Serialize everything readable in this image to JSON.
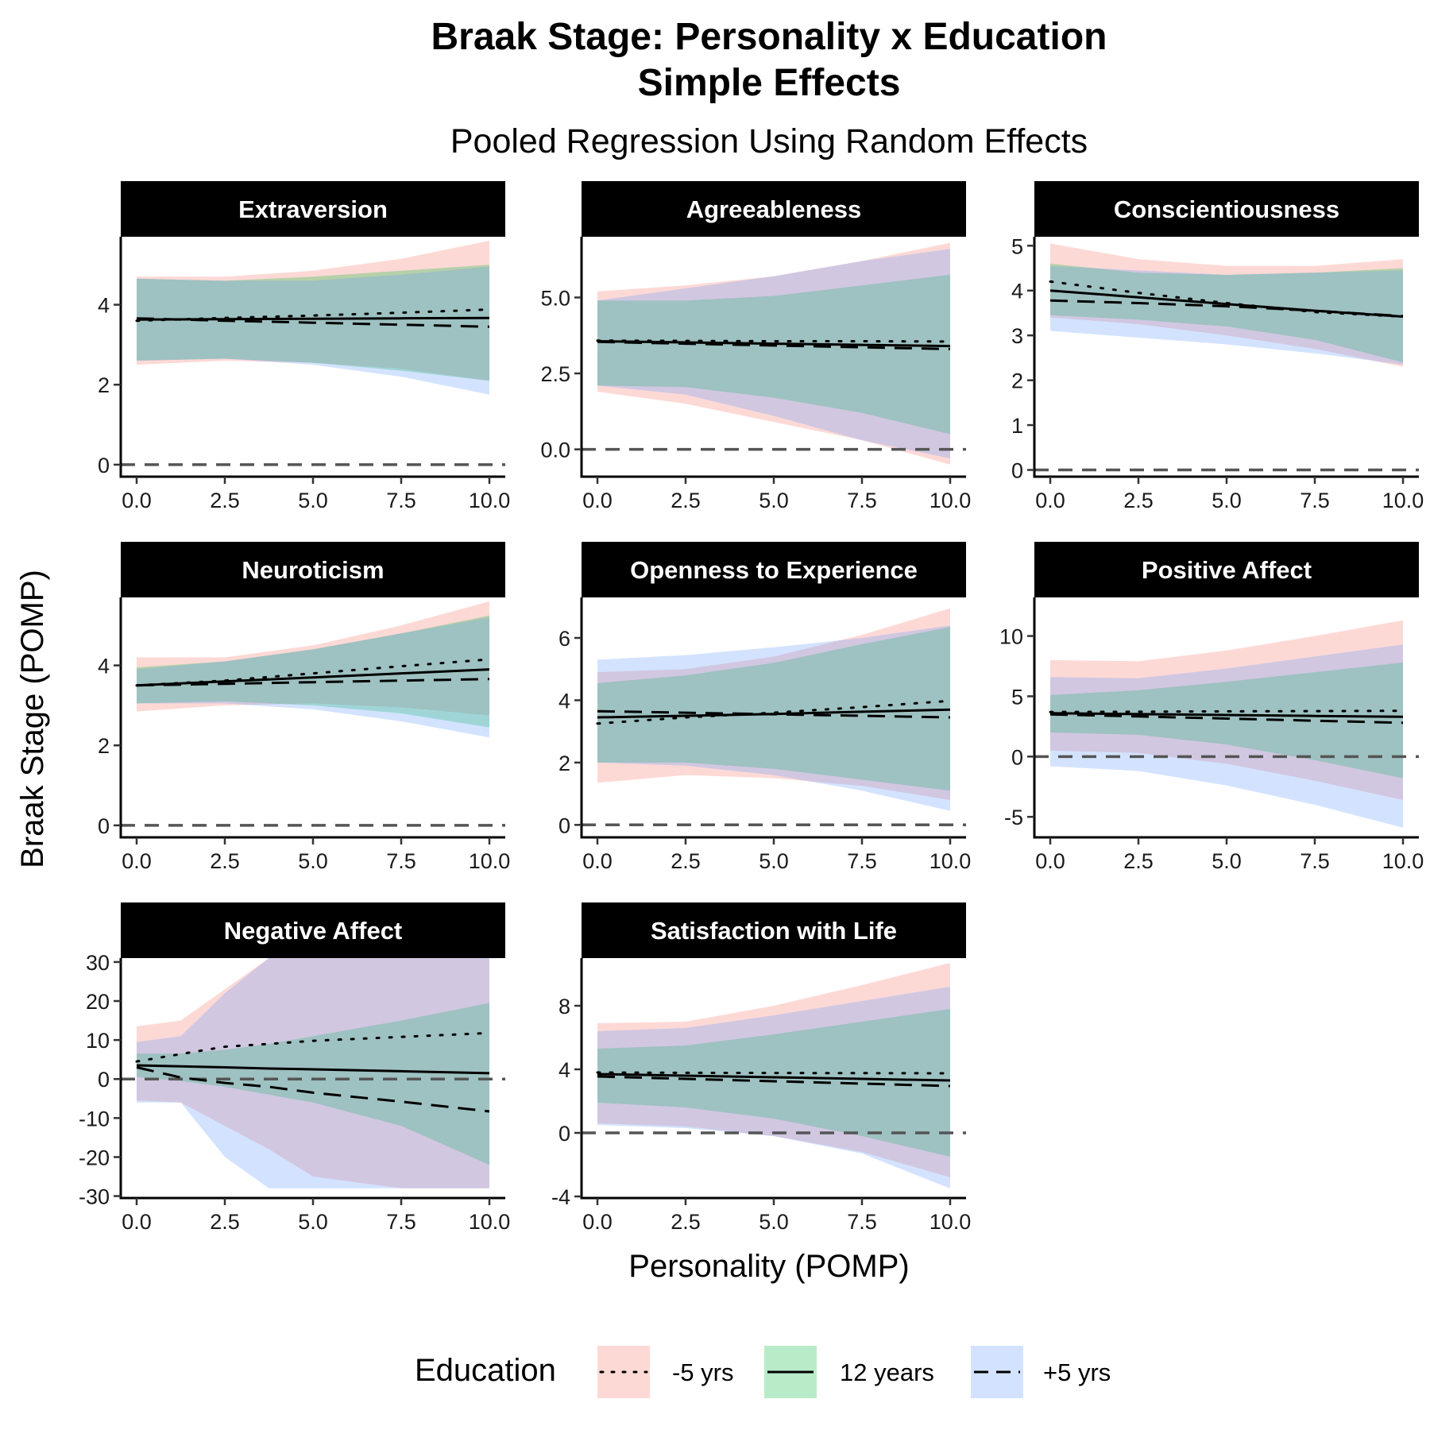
{
  "title_line1": "Braak Stage: Personality x Education",
  "title_line2": "Simple Effects",
  "subtitle": "Pooled Regression Using Random Effects",
  "xlabel": "Personality (POMP)",
  "ylabel": "Braak Stage (POMP)",
  "legend": {
    "title": "Education",
    "items": [
      {
        "label": "-5 yrs",
        "fill": "#F8766D",
        "linetype": "dotted"
      },
      {
        "label": "12 years",
        "fill": "#00BA38",
        "linetype": "solid"
      },
      {
        "label": "+5 yrs",
        "fill": "#619CFF",
        "linetype": "dashed"
      }
    ]
  },
  "colors": {
    "low": "#F8766D",
    "mid": "#00BA38",
    "high": "#619CFF",
    "strip": "#000000",
    "zero_line": "#555555"
  },
  "chart_data": [
    {
      "type": "line",
      "title": "Extraversion",
      "xlim": [
        0,
        10
      ],
      "xticks": [
        0,
        2.5,
        5,
        7.5,
        10
      ],
      "xtick_labels": [
        "0.0",
        "2.5",
        "5.0",
        "7.5",
        "10.0"
      ],
      "ylim": [
        -0.3,
        5.7
      ],
      "yticks": [
        0,
        2,
        4
      ],
      "ytick_labels": [
        "0",
        "2",
        "4"
      ],
      "x": [
        0,
        2.5,
        5,
        7.5,
        10
      ],
      "series": [
        {
          "name": "-5 yrs",
          "line": [
            3.6,
            3.67,
            3.73,
            3.8,
            3.88
          ],
          "lower": [
            2.5,
            2.6,
            2.55,
            2.4,
            2.1
          ],
          "upper": [
            4.7,
            4.7,
            4.85,
            5.15,
            5.6
          ]
        },
        {
          "name": "12 years",
          "line": [
            3.63,
            3.64,
            3.65,
            3.66,
            3.67
          ],
          "lower": [
            2.6,
            2.65,
            2.55,
            2.35,
            2.1
          ],
          "upper": [
            4.65,
            4.6,
            4.7,
            4.85,
            5.0
          ]
        },
        {
          "name": "+5 yrs",
          "line": [
            3.66,
            3.6,
            3.55,
            3.5,
            3.45
          ],
          "lower": [
            2.6,
            2.65,
            2.5,
            2.2,
            1.75
          ],
          "upper": [
            4.65,
            4.6,
            4.6,
            4.75,
            4.95
          ]
        }
      ]
    },
    {
      "type": "line",
      "title": "Agreeableness",
      "xlim": [
        0,
        10
      ],
      "xticks": [
        0,
        2.5,
        5,
        7.5,
        10
      ],
      "xtick_labels": [
        "0.0",
        "2.5",
        "5.0",
        "7.5",
        "10.0"
      ],
      "ylim": [
        -0.9,
        7.0
      ],
      "yticks": [
        0,
        2.5,
        5
      ],
      "ytick_labels": [
        "0.0",
        "2.5",
        "5.0"
      ],
      "x": [
        0,
        2.5,
        5,
        7.5,
        10
      ],
      "series": [
        {
          "name": "-5 yrs",
          "line": [
            3.58,
            3.57,
            3.56,
            3.56,
            3.55
          ],
          "lower": [
            1.9,
            1.5,
            0.9,
            0.3,
            -0.5
          ],
          "upper": [
            5.2,
            5.4,
            5.7,
            6.2,
            6.8
          ]
        },
        {
          "name": "12 years",
          "line": [
            3.56,
            3.52,
            3.48,
            3.44,
            3.4
          ],
          "lower": [
            2.1,
            2.05,
            1.7,
            1.2,
            0.5
          ],
          "upper": [
            4.9,
            4.9,
            5.05,
            5.4,
            5.75
          ]
        },
        {
          "name": "+5 yrs",
          "line": [
            3.54,
            3.48,
            3.42,
            3.36,
            3.3
          ],
          "lower": [
            2.1,
            1.8,
            1.1,
            0.3,
            -0.3
          ],
          "upper": [
            4.9,
            5.3,
            5.7,
            6.2,
            6.6
          ]
        }
      ]
    },
    {
      "type": "line",
      "title": "Conscientiousness",
      "xlim": [
        0,
        10
      ],
      "xticks": [
        0,
        2.5,
        5,
        7.5,
        10
      ],
      "xtick_labels": [
        "0.0",
        "2.5",
        "5.0",
        "7.5",
        "10.0"
      ],
      "ylim": [
        -0.15,
        5.2
      ],
      "yticks": [
        0,
        1,
        2,
        3,
        4,
        5
      ],
      "ytick_labels": [
        "0",
        "1",
        "2",
        "3",
        "4",
        "5"
      ],
      "x": [
        0,
        2.5,
        5,
        7.5,
        10
      ],
      "series": [
        {
          "name": "-5 yrs",
          "line": [
            4.2,
            3.95,
            3.72,
            3.52,
            3.42
          ],
          "lower": [
            3.4,
            3.25,
            3.0,
            2.7,
            2.3
          ],
          "upper": [
            5.05,
            4.7,
            4.55,
            4.55,
            4.7
          ]
        },
        {
          "name": "12 years",
          "line": [
            4.0,
            3.85,
            3.7,
            3.55,
            3.42
          ],
          "lower": [
            3.45,
            3.35,
            3.2,
            2.9,
            2.4
          ],
          "upper": [
            4.6,
            4.4,
            4.35,
            4.4,
            4.5
          ]
        },
        {
          "name": "+5 yrs",
          "line": [
            3.78,
            3.72,
            3.65,
            3.55,
            3.43
          ],
          "lower": [
            3.1,
            2.95,
            2.8,
            2.6,
            2.35
          ],
          "upper": [
            4.55,
            4.45,
            4.35,
            4.4,
            4.45
          ]
        }
      ]
    },
    {
      "type": "line",
      "title": "Neuroticism",
      "xlim": [
        0,
        10
      ],
      "xticks": [
        0,
        2.5,
        5,
        7.5,
        10
      ],
      "xtick_labels": [
        "0.0",
        "2.5",
        "5.0",
        "7.5",
        "10.0"
      ],
      "ylim": [
        -0.3,
        5.7
      ],
      "yticks": [
        0,
        2,
        4
      ],
      "ytick_labels": [
        "0",
        "2",
        "4"
      ],
      "x": [
        0,
        2.5,
        5,
        7.5,
        10
      ],
      "series": [
        {
          "name": "-5 yrs",
          "line": [
            3.5,
            3.62,
            3.8,
            3.98,
            4.15
          ],
          "lower": [
            2.85,
            3.0,
            3.05,
            2.95,
            2.75
          ],
          "upper": [
            4.2,
            4.2,
            4.5,
            5.0,
            5.6
          ]
        },
        {
          "name": "12 years",
          "line": [
            3.5,
            3.6,
            3.7,
            3.8,
            3.9
          ],
          "lower": [
            3.05,
            3.1,
            3.0,
            2.8,
            2.45
          ],
          "upper": [
            3.95,
            4.1,
            4.4,
            4.8,
            5.25
          ]
        },
        {
          "name": "+5 yrs",
          "line": [
            3.5,
            3.54,
            3.58,
            3.62,
            3.66
          ],
          "lower": [
            3.05,
            3.05,
            2.9,
            2.6,
            2.2
          ],
          "upper": [
            3.9,
            4.1,
            4.4,
            4.8,
            5.2
          ]
        }
      ]
    },
    {
      "type": "line",
      "title": "Openness to Experience",
      "xlim": [
        0,
        10
      ],
      "xticks": [
        0,
        2.5,
        5,
        7.5,
        10
      ],
      "xtick_labels": [
        "0.0",
        "2.5",
        "5.0",
        "7.5",
        "10.0"
      ],
      "ylim": [
        -0.4,
        7.3
      ],
      "yticks": [
        0,
        2,
        4,
        6
      ],
      "ytick_labels": [
        "0",
        "2",
        "4",
        "6"
      ],
      "x": [
        0,
        2.5,
        5,
        7.5,
        10
      ],
      "series": [
        {
          "name": "-5 yrs",
          "line": [
            3.25,
            3.45,
            3.6,
            3.78,
            3.98
          ],
          "lower": [
            1.35,
            1.6,
            1.5,
            1.25,
            0.8
          ],
          "upper": [
            4.9,
            5.0,
            5.4,
            6.1,
            6.95
          ]
        },
        {
          "name": "12 years",
          "line": [
            3.45,
            3.5,
            3.56,
            3.63,
            3.7
          ],
          "lower": [
            2.0,
            2.0,
            1.8,
            1.45,
            1.1
          ],
          "upper": [
            4.55,
            4.8,
            5.2,
            5.8,
            6.35
          ]
        },
        {
          "name": "+5 yrs",
          "line": [
            3.65,
            3.6,
            3.55,
            3.5,
            3.45
          ],
          "lower": [
            2.0,
            1.9,
            1.6,
            1.1,
            0.45
          ],
          "upper": [
            5.3,
            5.45,
            5.7,
            6.0,
            6.4
          ]
        }
      ]
    },
    {
      "type": "line",
      "title": "Positive Affect",
      "xlim": [
        0,
        10
      ],
      "xticks": [
        0,
        2.5,
        5,
        7.5,
        10
      ],
      "xtick_labels": [
        "0.0",
        "2.5",
        "5.0",
        "7.5",
        "10.0"
      ],
      "ylim": [
        -6.7,
        13.2
      ],
      "yticks": [
        -5,
        0,
        5,
        10
      ],
      "ytick_labels": [
        "-5",
        "0",
        "5",
        "10"
      ],
      "x": [
        0,
        2.5,
        5,
        7.5,
        10
      ],
      "series": [
        {
          "name": "-5 yrs",
          "line": [
            3.7,
            3.72,
            3.75,
            3.77,
            3.8
          ],
          "lower": [
            0.5,
            0.3,
            -0.6,
            -2.0,
            -3.6
          ],
          "upper": [
            8.0,
            7.9,
            8.8,
            10.0,
            11.3
          ]
        },
        {
          "name": "12 years",
          "line": [
            3.6,
            3.52,
            3.45,
            3.37,
            3.3
          ],
          "lower": [
            2.0,
            1.8,
            1.0,
            -0.3,
            -1.8
          ],
          "upper": [
            5.1,
            5.5,
            6.2,
            7.0,
            7.8
          ]
        },
        {
          "name": "+5 yrs",
          "line": [
            3.5,
            3.33,
            3.15,
            2.97,
            2.8
          ],
          "lower": [
            -0.8,
            -1.2,
            -2.4,
            -4.0,
            -5.9
          ],
          "upper": [
            6.6,
            6.5,
            7.3,
            8.3,
            9.3
          ]
        }
      ]
    },
    {
      "type": "line",
      "title": "Negative Affect",
      "xlim": [
        0,
        10
      ],
      "xticks": [
        0,
        2.5,
        5,
        7.5,
        10
      ],
      "xtick_labels": [
        "0.0",
        "2.5",
        "5.0",
        "7.5",
        "10.0"
      ],
      "ylim": [
        -30.5,
        31
      ],
      "yticks": [
        -30,
        -20,
        -10,
        0,
        10,
        20,
        30
      ],
      "ytick_labels": [
        "-30",
        "-20",
        "-10",
        "0",
        "10",
        "20",
        "30"
      ],
      "x": [
        0,
        1.25,
        2.5,
        3.75,
        5,
        7.5,
        10
      ],
      "series": [
        {
          "name": "-5 yrs",
          "line": [
            4.5,
            6.4,
            8.3,
            9.0,
            9.8,
            10.8,
            11.8
          ],
          "lower": [
            -5.5,
            -6.0,
            -12.0,
            -18.0,
            -25.0,
            -28.0,
            -28.0
          ],
          "upper": [
            13.5,
            15.0,
            23.0,
            31.0,
            31.0,
            31.0,
            31.0
          ]
        },
        {
          "name": "12 years",
          "line": [
            3.5,
            3.25,
            3.0,
            2.7,
            2.5,
            2.0,
            1.5
          ],
          "lower": [
            0.5,
            -0.5,
            -2.0,
            -4.0,
            -6.0,
            -12.0,
            -22.0
          ],
          "upper": [
            6.5,
            6.5,
            7.5,
            9.0,
            11.0,
            15.0,
            19.5
          ]
        },
        {
          "name": "+5 yrs",
          "line": [
            3.0,
            0.4,
            -1.0,
            -2.0,
            -3.5,
            -5.8,
            -8.3
          ],
          "lower": [
            -6.0,
            -6.0,
            -20.0,
            -28.0,
            -28.0,
            -28.0,
            -28.0
          ],
          "upper": [
            9.5,
            11.0,
            22.0,
            31.0,
            31.0,
            31.0,
            31.0
          ]
        }
      ]
    },
    {
      "type": "line",
      "title": "Satisfaction with Life",
      "xlim": [
        0,
        10
      ],
      "xticks": [
        0,
        2.5,
        5,
        7.5,
        10
      ],
      "xtick_labels": [
        "0.0",
        "2.5",
        "5.0",
        "7.5",
        "10.0"
      ],
      "ylim": [
        -4.1,
        11.0
      ],
      "yticks": [
        -4,
        0,
        4,
        8
      ],
      "ytick_labels": [
        "-4",
        "0",
        "4",
        "8"
      ],
      "x": [
        0,
        2.5,
        5,
        7.5,
        10
      ],
      "series": [
        {
          "name": "-5 yrs",
          "line": [
            3.8,
            3.78,
            3.77,
            3.76,
            3.75
          ],
          "lower": [
            0.6,
            0.4,
            -0.2,
            -1.2,
            -2.8
          ],
          "upper": [
            6.9,
            7.0,
            8.0,
            9.3,
            10.7
          ]
        },
        {
          "name": "12 years",
          "line": [
            3.7,
            3.6,
            3.5,
            3.4,
            3.3
          ],
          "lower": [
            1.9,
            1.6,
            0.9,
            -0.2,
            -1.5
          ],
          "upper": [
            5.3,
            5.5,
            6.2,
            7.0,
            7.8
          ]
        },
        {
          "name": "+5 yrs",
          "line": [
            3.55,
            3.4,
            3.25,
            3.1,
            2.95
          ],
          "lower": [
            0.5,
            0.3,
            -0.2,
            -1.3,
            -3.5
          ],
          "upper": [
            6.4,
            6.6,
            7.4,
            8.3,
            9.2
          ]
        }
      ]
    }
  ]
}
